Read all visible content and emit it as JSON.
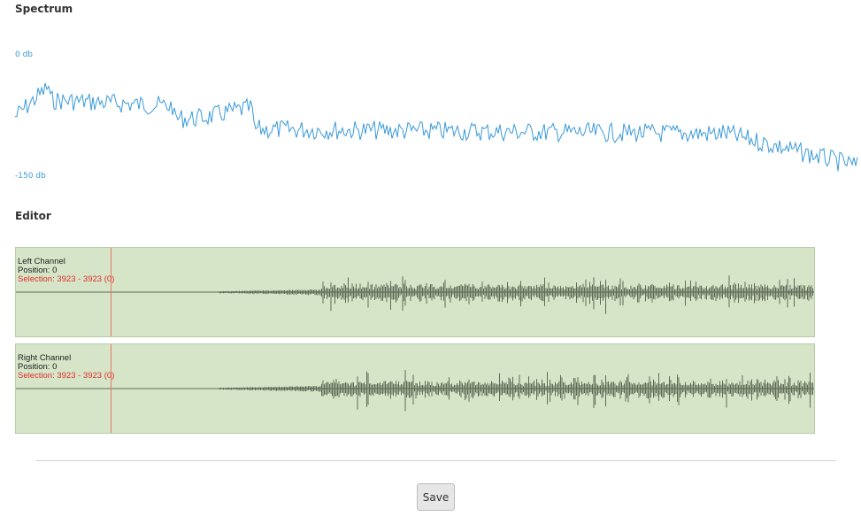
{
  "spectrum": {
    "title": "Spectrum",
    "top_label": "0 db",
    "bottom_label": "-150 db",
    "line_color": "#3a9ad9"
  },
  "editor": {
    "title": "Editor",
    "channels": [
      {
        "name": "Left Channel",
        "position": "Position: 0",
        "selection": "Selection: 3923 - 3923 (0)"
      },
      {
        "name": "Right Channel",
        "position": "Position: 0",
        "selection": "Selection: 3923 - 3923 (0)"
      }
    ],
    "background_color": "#d6e4c7",
    "wave_color": "#5f6b57",
    "cursor_color": "#e87a6a",
    "selection_color": "#e03030"
  },
  "actions": {
    "save_label": "Save"
  }
}
